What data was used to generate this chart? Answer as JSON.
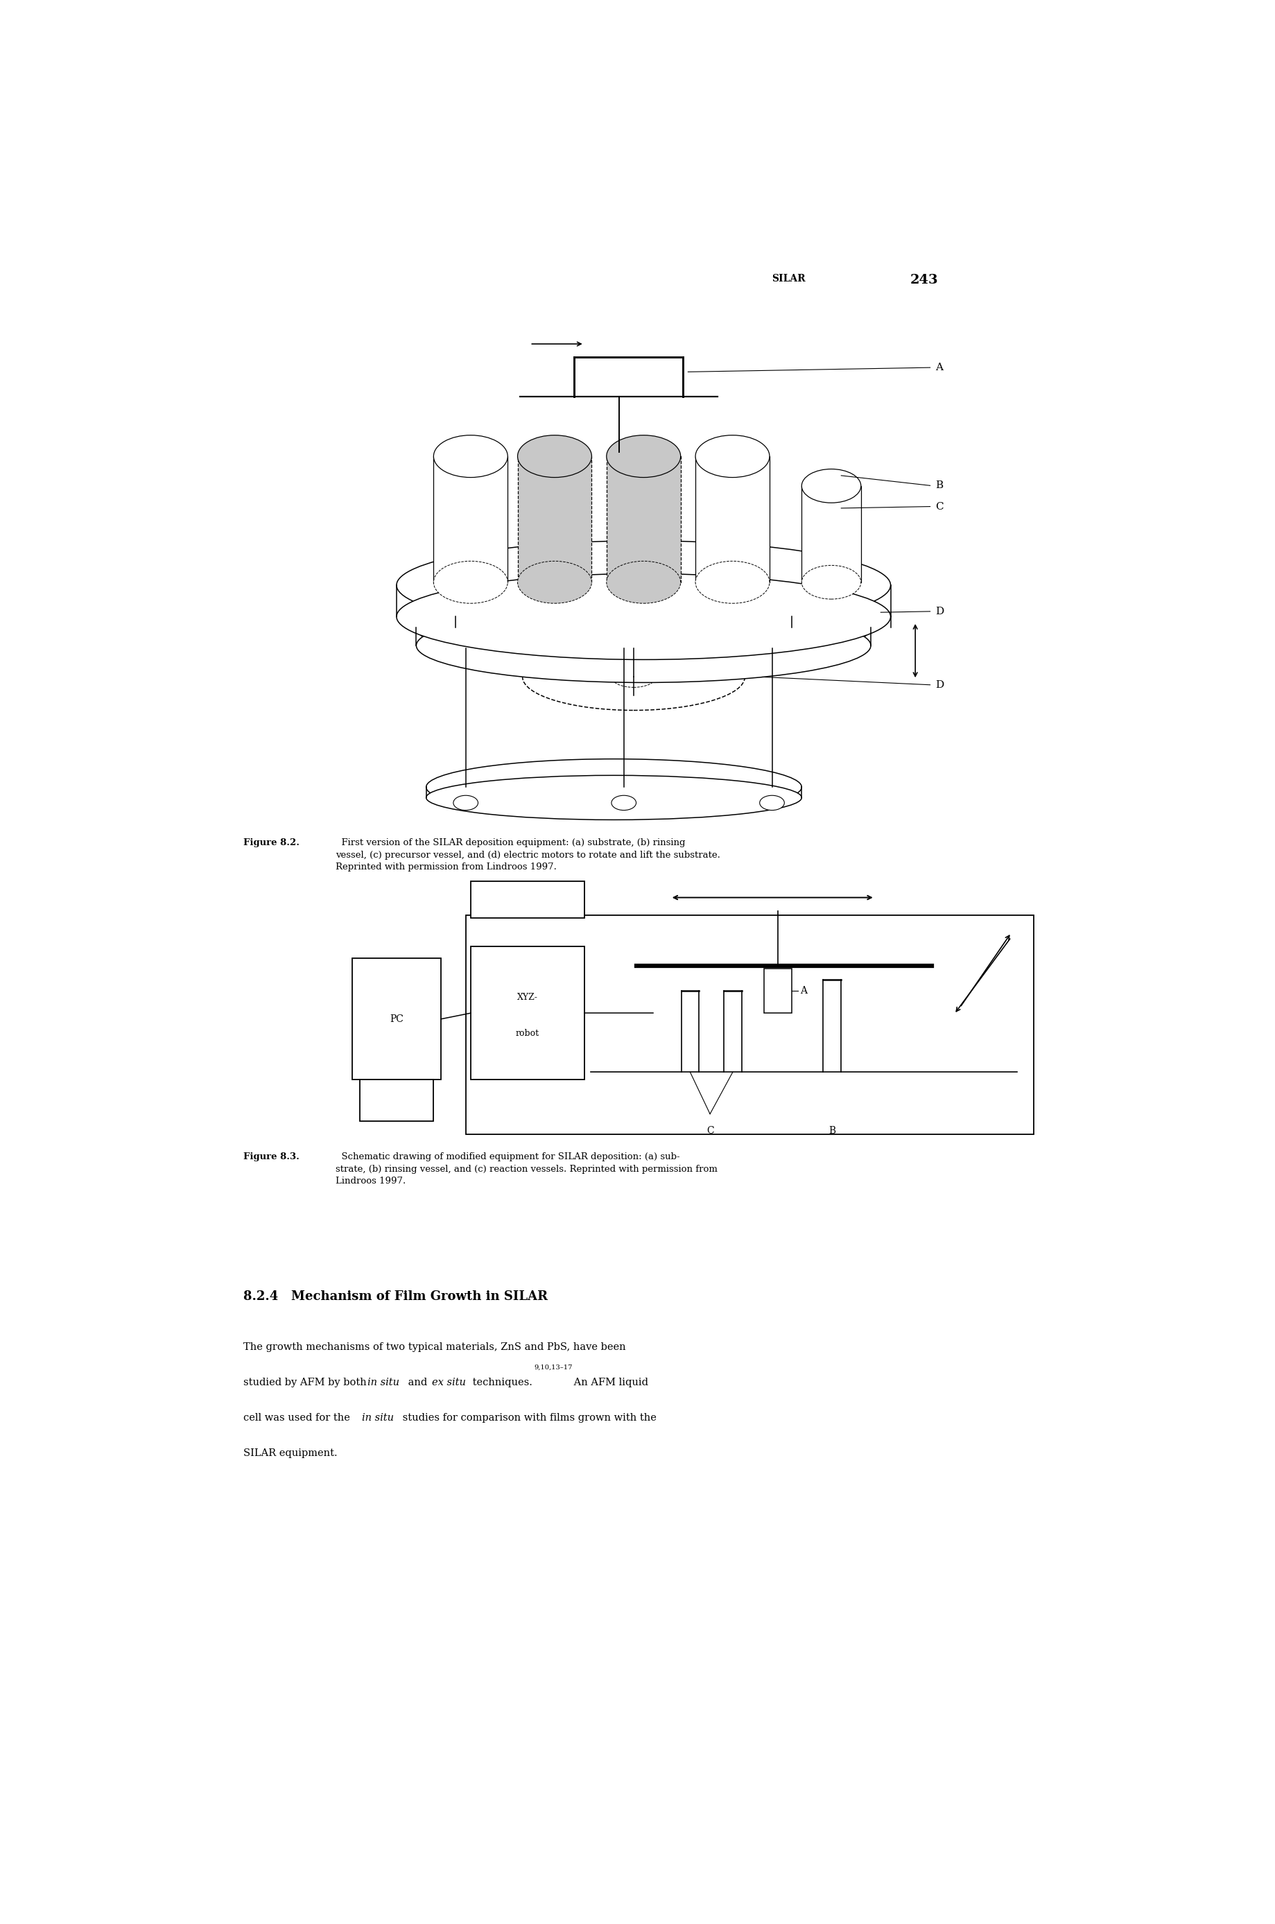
{
  "page_width": 18.39,
  "page_height": 27.75,
  "background_color": "#ffffff",
  "header_silar": "SILAR",
  "header_num": "243",
  "fig82_caption_bold": "Figure 8.2.",
  "fig82_caption_rest": "  First version of the SILAR deposition equipment: (a) substrate, (b) rinsing\nvessel, (c) precursor vessel, and (d) electric motors to rotate and lift the substrate.\nReprinted with permission from Lindroos 1997.",
  "fig83_caption_bold": "Figure 8.3.",
  "fig83_caption_rest": "  Schematic drawing of modified equipment for SILAR deposition: (a) sub-\nstrate, (b) rinsing vessel, and (c) reaction vessels. Reprinted with permission from\nLindroos 1997.",
  "section_title": "8.2.4   Mechanism of Film Growth in SILAR",
  "body1": "The growth mechanisms of two typical materials, ZnS and PbS, have been\nstudied by AFM by both ",
  "body1_italic": "in situ",
  "body2": " and ",
  "body2_italic": "ex situ",
  "body3": " techniques.",
  "body3_super": "9,10,13–17",
  "body4": " An AFM liquid\ncell was used for the ",
  "body4_italic": "in situ",
  "body5": " studies for comparison with films grown with the\nSILAR equipment.",
  "lm": 0.085,
  "rm": 0.915,
  "text_color": "#000000",
  "fs_body": 10.5,
  "fs_caption": 9.5,
  "fs_header": 10,
  "fs_section": 13
}
